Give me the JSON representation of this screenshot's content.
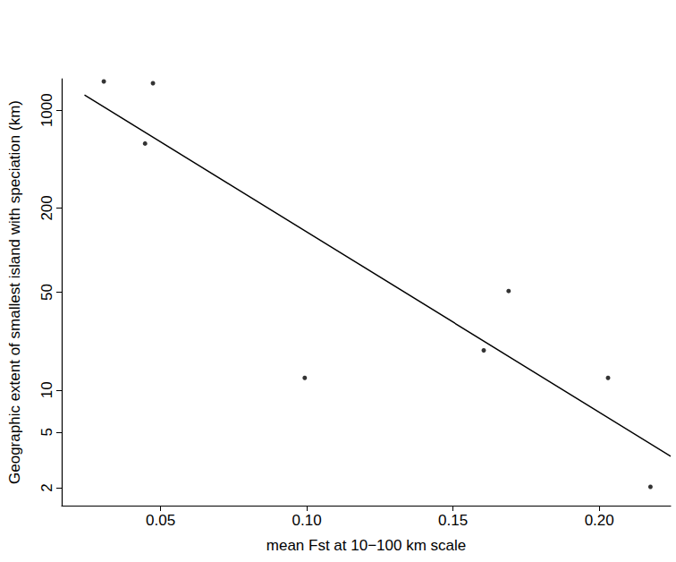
{
  "chart_data": {
    "type": "scatter",
    "x_label": "mean Fst at 10−100 km scale",
    "y_label": "Geographic extent of smallest island with speciation (km)",
    "log": "y",
    "grid": false,
    "xlim": [
      0.0162,
      0.2244
    ],
    "ylim": [
      1.49,
      1679
    ],
    "xticks": [
      0.05,
      {
        "value": 0.1,
        "label": "0.10"
      },
      0.15,
      {
        "value": 0.2,
        "label": "0.20"
      }
    ],
    "yticks": [
      2,
      5,
      10,
      50,
      200,
      1000
    ],
    "series": [
      {
        "type": "scatter",
        "color": "#000000",
        "marker": "circle",
        "x": [
          0.0306,
          0.0474,
          0.0447,
          0.169,
          0.0993,
          0.1605,
          0.203,
          0.2175
        ],
        "values": [
          1607,
          1560,
          578,
          51,
          12.2,
          19.2,
          12.2,
          2.03
        ]
      },
      {
        "type": "line",
        "color": "#000000",
        "line_style": "solid",
        "x": [
          0.024,
          0.2244
        ],
        "values": [
          1286,
          3.36
        ]
      }
    ]
  }
}
